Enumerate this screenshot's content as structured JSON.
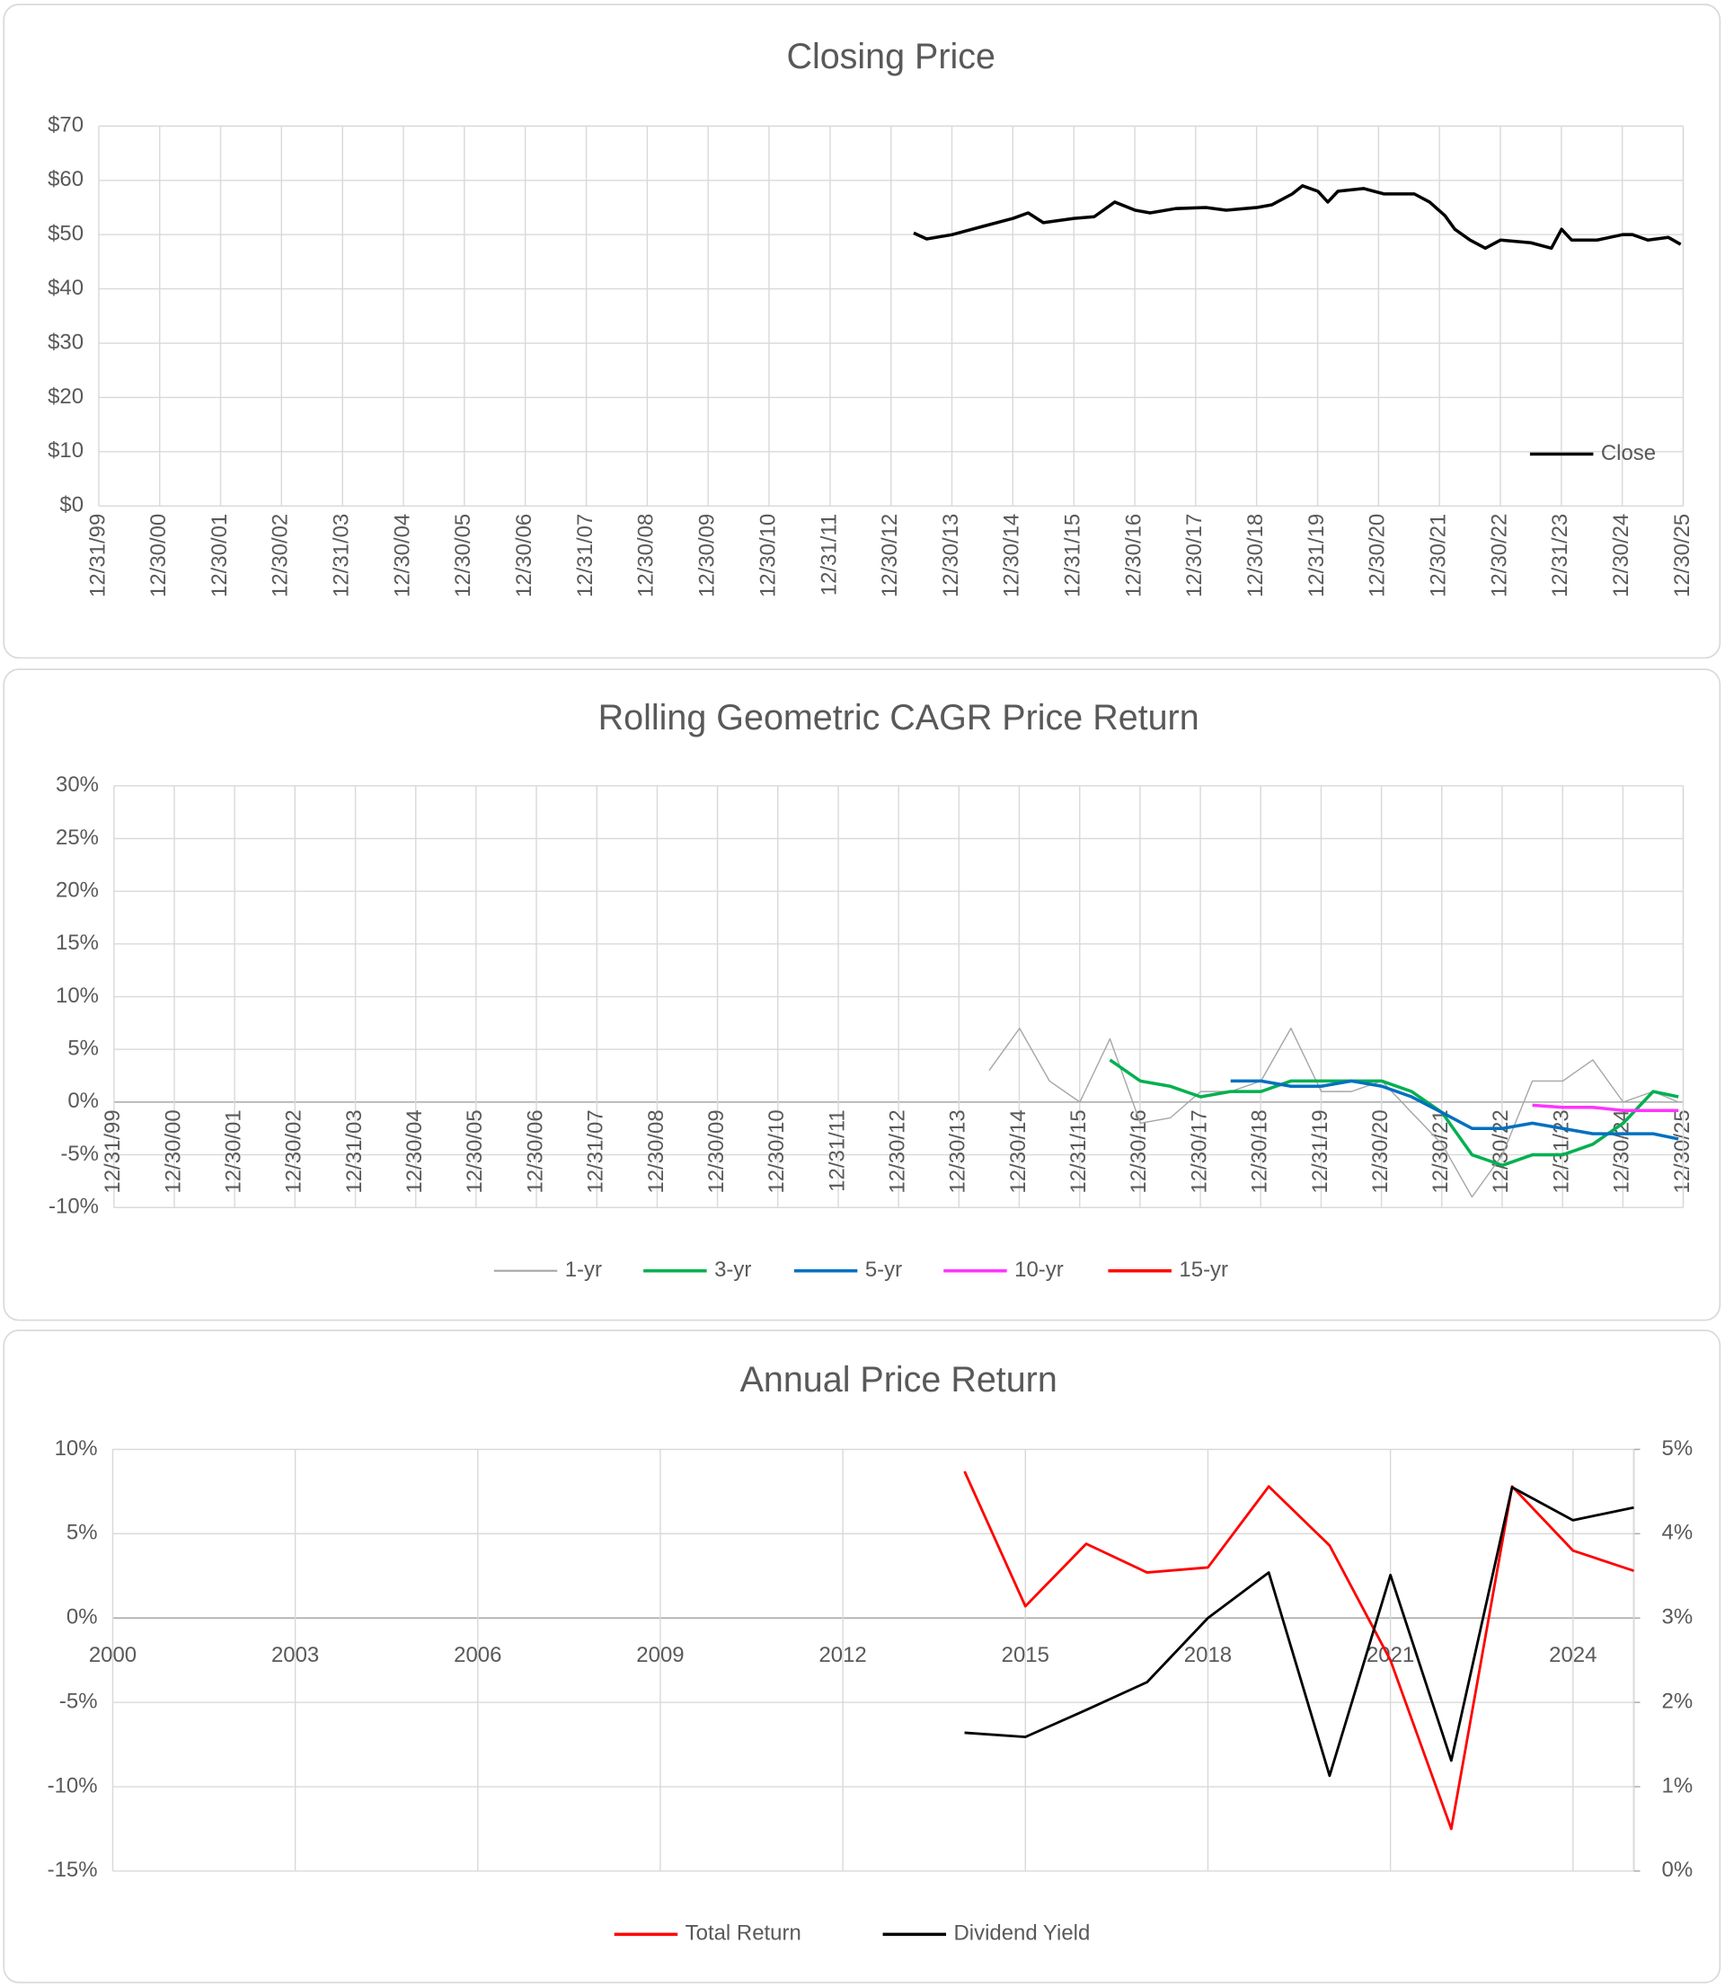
{
  "chart_data": [
    {
      "type": "line",
      "title": "Closing Price",
      "grid": true,
      "legend": "bottom-right",
      "x": [
        "2013-05-15",
        "2013-08-01",
        "2014-01-01",
        "2014-07-01",
        "2015-01-01",
        "2015-04-01",
        "2015-07-01",
        "2016-01-01",
        "2016-05-01",
        "2016-09-01",
        "2017-01-01",
        "2017-04-01",
        "2017-09-01",
        "2018-03-01",
        "2018-07-01",
        "2019-01-01",
        "2019-04-01",
        "2019-08-01",
        "2019-10-01",
        "2020-01-01",
        "2020-03-01",
        "2020-05-01",
        "2020-10-01",
        "2021-02-01",
        "2021-08-01",
        "2021-11-01",
        "2022-02-01",
        "2022-04-01",
        "2022-07-01",
        "2022-10-01",
        "2023-01-01",
        "2023-07-01",
        "2023-11-01",
        "2024-01-01",
        "2024-03-01",
        "2024-08-01",
        "2025-01-01",
        "2025-03-01",
        "2025-06-01",
        "2025-10-01",
        "2025-12-15"
      ],
      "series": [
        {
          "name": "Close",
          "color": "#000000",
          "values": [
            50.3,
            49.2,
            50.0,
            51.5,
            53.0,
            54.0,
            52.2,
            53.0,
            53.3,
            56.0,
            54.5,
            54.0,
            54.8,
            55.0,
            54.5,
            55.0,
            55.5,
            57.5,
            59.0,
            58.0,
            56.0,
            58.0,
            58.5,
            57.5,
            57.5,
            56.0,
            53.5,
            51.0,
            49.0,
            47.5,
            49.0,
            48.5,
            47.5,
            51.0,
            49.0,
            49.0,
            50.0,
            50.0,
            49.0,
            49.5,
            48.2
          ]
        }
      ],
      "xlim": [
        "1999-12-31",
        "2025-12-30"
      ],
      "xticks": [
        {
          "value": "1999-12-31",
          "label": "12/31/99"
        },
        {
          "value": "2000-12-30",
          "label": "12/30/00"
        },
        {
          "value": "2001-12-30",
          "label": "12/30/01"
        },
        {
          "value": "2002-12-30",
          "label": "12/30/02"
        },
        {
          "value": "2003-12-31",
          "label": "12/31/03"
        },
        {
          "value": "2004-12-30",
          "label": "12/30/04"
        },
        {
          "value": "2005-12-30",
          "label": "12/30/05"
        },
        {
          "value": "2006-12-30",
          "label": "12/30/06"
        },
        {
          "value": "2007-12-31",
          "label": "12/31/07"
        },
        {
          "value": "2008-12-30",
          "label": "12/30/08"
        },
        {
          "value": "2009-12-30",
          "label": "12/30/09"
        },
        {
          "value": "2010-12-30",
          "label": "12/30/10"
        },
        {
          "value": "2011-12-31",
          "label": "12/31/11"
        },
        {
          "value": "2012-12-30",
          "label": "12/30/12"
        },
        {
          "value": "2013-12-30",
          "label": "12/30/13"
        },
        {
          "value": "2014-12-30",
          "label": "12/30/14"
        },
        {
          "value": "2015-12-31",
          "label": "12/31/15"
        },
        {
          "value": "2016-12-30",
          "label": "12/30/16"
        },
        {
          "value": "2017-12-30",
          "label": "12/30/17"
        },
        {
          "value": "2018-12-30",
          "label": "12/30/18"
        },
        {
          "value": "2019-12-31",
          "label": "12/31/19"
        },
        {
          "value": "2020-12-30",
          "label": "12/30/20"
        },
        {
          "value": "2021-12-30",
          "label": "12/30/21"
        },
        {
          "value": "2022-12-30",
          "label": "12/30/22"
        },
        {
          "value": "2023-12-31",
          "label": "12/31/23"
        },
        {
          "value": "2024-12-30",
          "label": "12/30/24"
        },
        {
          "value": "2025-12-30",
          "label": "12/30/25"
        }
      ],
      "ylim": [
        0,
        70
      ],
      "yticks": [
        {
          "value": 0,
          "label": "$0"
        },
        {
          "value": 10,
          "label": "$10"
        },
        {
          "value": 20,
          "label": "$20"
        },
        {
          "value": 30,
          "label": "$30"
        },
        {
          "value": 40,
          "label": "$40"
        },
        {
          "value": 50,
          "label": "$50"
        },
        {
          "value": 60,
          "label": "$60"
        },
        {
          "value": 70,
          "label": "$70"
        }
      ]
    },
    {
      "type": "line",
      "title": "Rolling Geometric CAGR Price Return",
      "grid": true,
      "legend": "bottom",
      "x": [
        "2014-07-01",
        "2015-01-01",
        "2015-07-01",
        "2016-01-01",
        "2016-07-01",
        "2017-01-01",
        "2017-07-01",
        "2018-01-01",
        "2018-07-01",
        "2019-01-01",
        "2019-07-01",
        "2020-01-01",
        "2020-07-01",
        "2021-01-01",
        "2021-07-01",
        "2022-01-01",
        "2022-07-01",
        "2023-01-01",
        "2023-07-01",
        "2024-01-01",
        "2024-07-01",
        "2025-01-01",
        "2025-07-01",
        "2025-12-01"
      ],
      "series": [
        {
          "name": "1-yr",
          "color": "#a6a6a6",
          "values": [
            3,
            7,
            2,
            0,
            6,
            -2,
            -1.5,
            1,
            1,
            2,
            7,
            1,
            1,
            2,
            -1,
            -4,
            -9,
            -5,
            2,
            2,
            4,
            0,
            1,
            0
          ]
        },
        {
          "name": "3-yr",
          "color": "#00b050",
          "values": [
            null,
            null,
            null,
            null,
            4,
            2,
            1.5,
            0.5,
            1,
            1,
            2,
            2,
            2,
            2,
            1,
            -1,
            -5,
            -6,
            -5,
            -5,
            -4,
            -2,
            1,
            0.5
          ]
        },
        {
          "name": "5-yr",
          "color": "#0070c0",
          "values": [
            null,
            null,
            null,
            null,
            null,
            null,
            null,
            null,
            2,
            2,
            1.5,
            1.5,
            2,
            1.5,
            0.5,
            -1,
            -2.5,
            -2.5,
            -2,
            -2.5,
            -3,
            -3,
            -3,
            -3.5
          ]
        },
        {
          "name": "10-yr",
          "color": "#ff33ff",
          "values": [
            null,
            null,
            null,
            null,
            null,
            null,
            null,
            null,
            null,
            null,
            null,
            null,
            null,
            null,
            null,
            null,
            null,
            null,
            -0.3,
            -0.5,
            -0.5,
            -0.8,
            -0.8,
            -0.8
          ]
        },
        {
          "name": "15-yr",
          "color": "#ff0000",
          "values": [
            null,
            null,
            null,
            null,
            null,
            null,
            null,
            null,
            null,
            null,
            null,
            null,
            null,
            null,
            null,
            null,
            null,
            null,
            null,
            null,
            null,
            null,
            null,
            null
          ]
        }
      ],
      "xlim": [
        "1999-12-31",
        "2025-12-30"
      ],
      "xticks": [
        {
          "value": "1999-12-31",
          "label": "12/31/99"
        },
        {
          "value": "2000-12-30",
          "label": "12/30/00"
        },
        {
          "value": "2001-12-30",
          "label": "12/30/01"
        },
        {
          "value": "2002-12-30",
          "label": "12/30/02"
        },
        {
          "value": "2003-12-31",
          "label": "12/31/03"
        },
        {
          "value": "2004-12-30",
          "label": "12/30/04"
        },
        {
          "value": "2005-12-30",
          "label": "12/30/05"
        },
        {
          "value": "2006-12-30",
          "label": "12/30/06"
        },
        {
          "value": "2007-12-31",
          "label": "12/31/07"
        },
        {
          "value": "2008-12-30",
          "label": "12/30/08"
        },
        {
          "value": "2009-12-30",
          "label": "12/30/09"
        },
        {
          "value": "2010-12-30",
          "label": "12/30/10"
        },
        {
          "value": "2011-12-31",
          "label": "12/31/11"
        },
        {
          "value": "2012-12-30",
          "label": "12/30/12"
        },
        {
          "value": "2013-12-30",
          "label": "12/30/13"
        },
        {
          "value": "2014-12-30",
          "label": "12/30/14"
        },
        {
          "value": "2015-12-31",
          "label": "12/31/15"
        },
        {
          "value": "2016-12-30",
          "label": "12/30/16"
        },
        {
          "value": "2017-12-30",
          "label": "12/30/17"
        },
        {
          "value": "2018-12-30",
          "label": "12/30/18"
        },
        {
          "value": "2019-12-31",
          "label": "12/31/19"
        },
        {
          "value": "2020-12-30",
          "label": "12/30/20"
        },
        {
          "value": "2021-12-30",
          "label": "12/30/21"
        },
        {
          "value": "2022-12-30",
          "label": "12/30/22"
        },
        {
          "value": "2023-12-31",
          "label": "12/31/23"
        },
        {
          "value": "2024-12-30",
          "label": "12/30/24"
        },
        {
          "value": "2025-12-30",
          "label": "12/30/25"
        }
      ],
      "ylim": [
        -10,
        30
      ],
      "yticks": [
        {
          "value": -10,
          "label": "-10%"
        },
        {
          "value": -5,
          "label": "-5%"
        },
        {
          "value": 0,
          "label": "0%"
        },
        {
          "value": 5,
          "label": "5%"
        },
        {
          "value": 10,
          "label": "10%"
        },
        {
          "value": 15,
          "label": "15%"
        },
        {
          "value": 20,
          "label": "20%"
        },
        {
          "value": 25,
          "label": "25%"
        },
        {
          "value": 30,
          "label": "30%"
        }
      ]
    },
    {
      "type": "line",
      "title": "Annual Price Return",
      "grid": true,
      "legend": "bottom",
      "x": [
        2014,
        2015,
        2016,
        2017,
        2018,
        2019,
        2020,
        2021,
        2022,
        2023,
        2024,
        2025
      ],
      "series": [
        {
          "name": "Total Return",
          "color": "#ff0000",
          "values": [
            8.7,
            0.7,
            4.4,
            2.7,
            3.0,
            7.8,
            4.3,
            -2.5,
            -12.5,
            7.8,
            4.0,
            2.8
          ]
        },
        {
          "name": "Dividend Yield",
          "color": "#000000",
          "axis": "y2",
          "values": [
            1.64,
            1.59,
            1.91,
            2.24,
            3.0,
            3.54,
            1.13,
            3.51,
            1.31,
            4.55,
            4.16,
            4.31
          ]
        }
      ],
      "xlim": [
        2000,
        2025
      ],
      "xticks": [
        2000,
        2003,
        2006,
        2009,
        2012,
        2015,
        2018,
        2021,
        2024
      ],
      "ylim": [
        -15,
        10
      ],
      "yticks": [
        {
          "value": -15,
          "label": "-15%"
        },
        {
          "value": -10,
          "label": "-10%"
        },
        {
          "value": -5,
          "label": "-5%"
        },
        {
          "value": 0,
          "label": "0%"
        },
        {
          "value": 5,
          "label": "5%"
        },
        {
          "value": 10,
          "label": "10%"
        }
      ],
      "y2lim": [
        0,
        5
      ],
      "y2ticks": [
        {
          "value": 0,
          "label": "0%"
        },
        {
          "value": 1,
          "label": "1%"
        },
        {
          "value": 2,
          "label": "2%"
        },
        {
          "value": 3,
          "label": "3%"
        },
        {
          "value": 4,
          "label": "4%"
        },
        {
          "value": 5,
          "label": "5%"
        }
      ]
    }
  ]
}
